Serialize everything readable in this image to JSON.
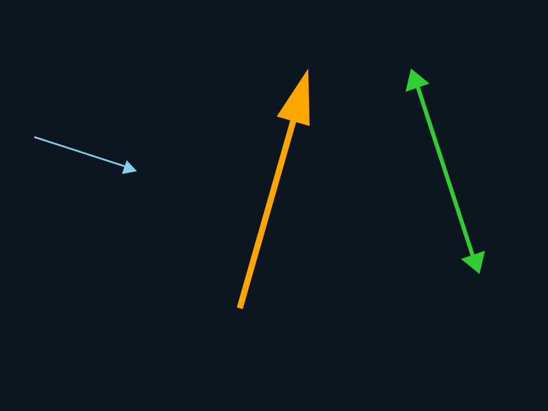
{
  "colors": {
    "background": "#0c1620",
    "arrow_light_blue": "#87ceeb",
    "arrow_orange": "#ffa500",
    "arrow_green": "#32cd32"
  },
  "arrows": [
    {
      "id": "light-blue-arrow",
      "color_key": "arrow_light_blue",
      "heads": "end"
    },
    {
      "id": "orange-arrow",
      "color_key": "arrow_orange",
      "heads": "end"
    },
    {
      "id": "green-double-arrow",
      "color_key": "arrow_green",
      "heads": "both"
    }
  ]
}
